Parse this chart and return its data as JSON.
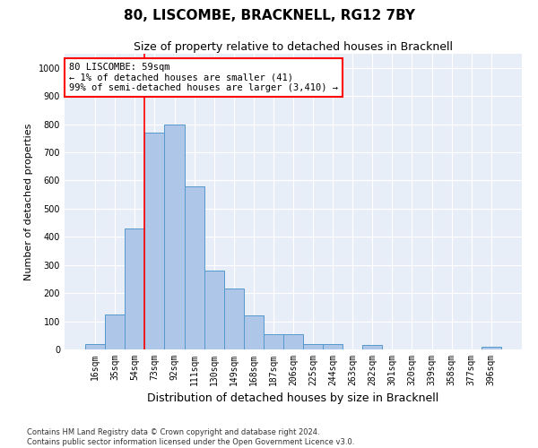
{
  "title": "80, LISCOMBE, BRACKNELL, RG12 7BY",
  "subtitle": "Size of property relative to detached houses in Bracknell",
  "xlabel": "Distribution of detached houses by size in Bracknell",
  "ylabel": "Number of detached properties",
  "categories": [
    "16sqm",
    "35sqm",
    "54sqm",
    "73sqm",
    "92sqm",
    "111sqm",
    "130sqm",
    "149sqm",
    "168sqm",
    "187sqm",
    "206sqm",
    "225sqm",
    "244sqm",
    "263sqm",
    "282sqm",
    "301sqm",
    "320sqm",
    "339sqm",
    "358sqm",
    "377sqm",
    "396sqm"
  ],
  "values": [
    20,
    125,
    430,
    770,
    800,
    580,
    280,
    215,
    120,
    55,
    55,
    18,
    18,
    0,
    15,
    0,
    0,
    0,
    0,
    0,
    8
  ],
  "bar_color": "#aec6e8",
  "bar_edge_color": "#5599cc",
  "vline_color": "red",
  "annotation_text": "80 LISCOMBE: 59sqm\n← 1% of detached houses are smaller (41)\n99% of semi-detached houses are larger (3,410) →",
  "annotation_box_color": "white",
  "annotation_box_edge_color": "red",
  "ylim": [
    0,
    1050
  ],
  "yticks": [
    0,
    100,
    200,
    300,
    400,
    500,
    600,
    700,
    800,
    900,
    1000
  ],
  "background_color": "#e8eef8",
  "footer_line1": "Contains HM Land Registry data © Crown copyright and database right 2024.",
  "footer_line2": "Contains public sector information licensed under the Open Government Licence v3.0.",
  "title_fontsize": 11,
  "subtitle_fontsize": 9,
  "xlabel_fontsize": 9,
  "ylabel_fontsize": 8,
  "tick_fontsize": 7,
  "annotation_fontsize": 7.5,
  "footer_fontsize": 6
}
